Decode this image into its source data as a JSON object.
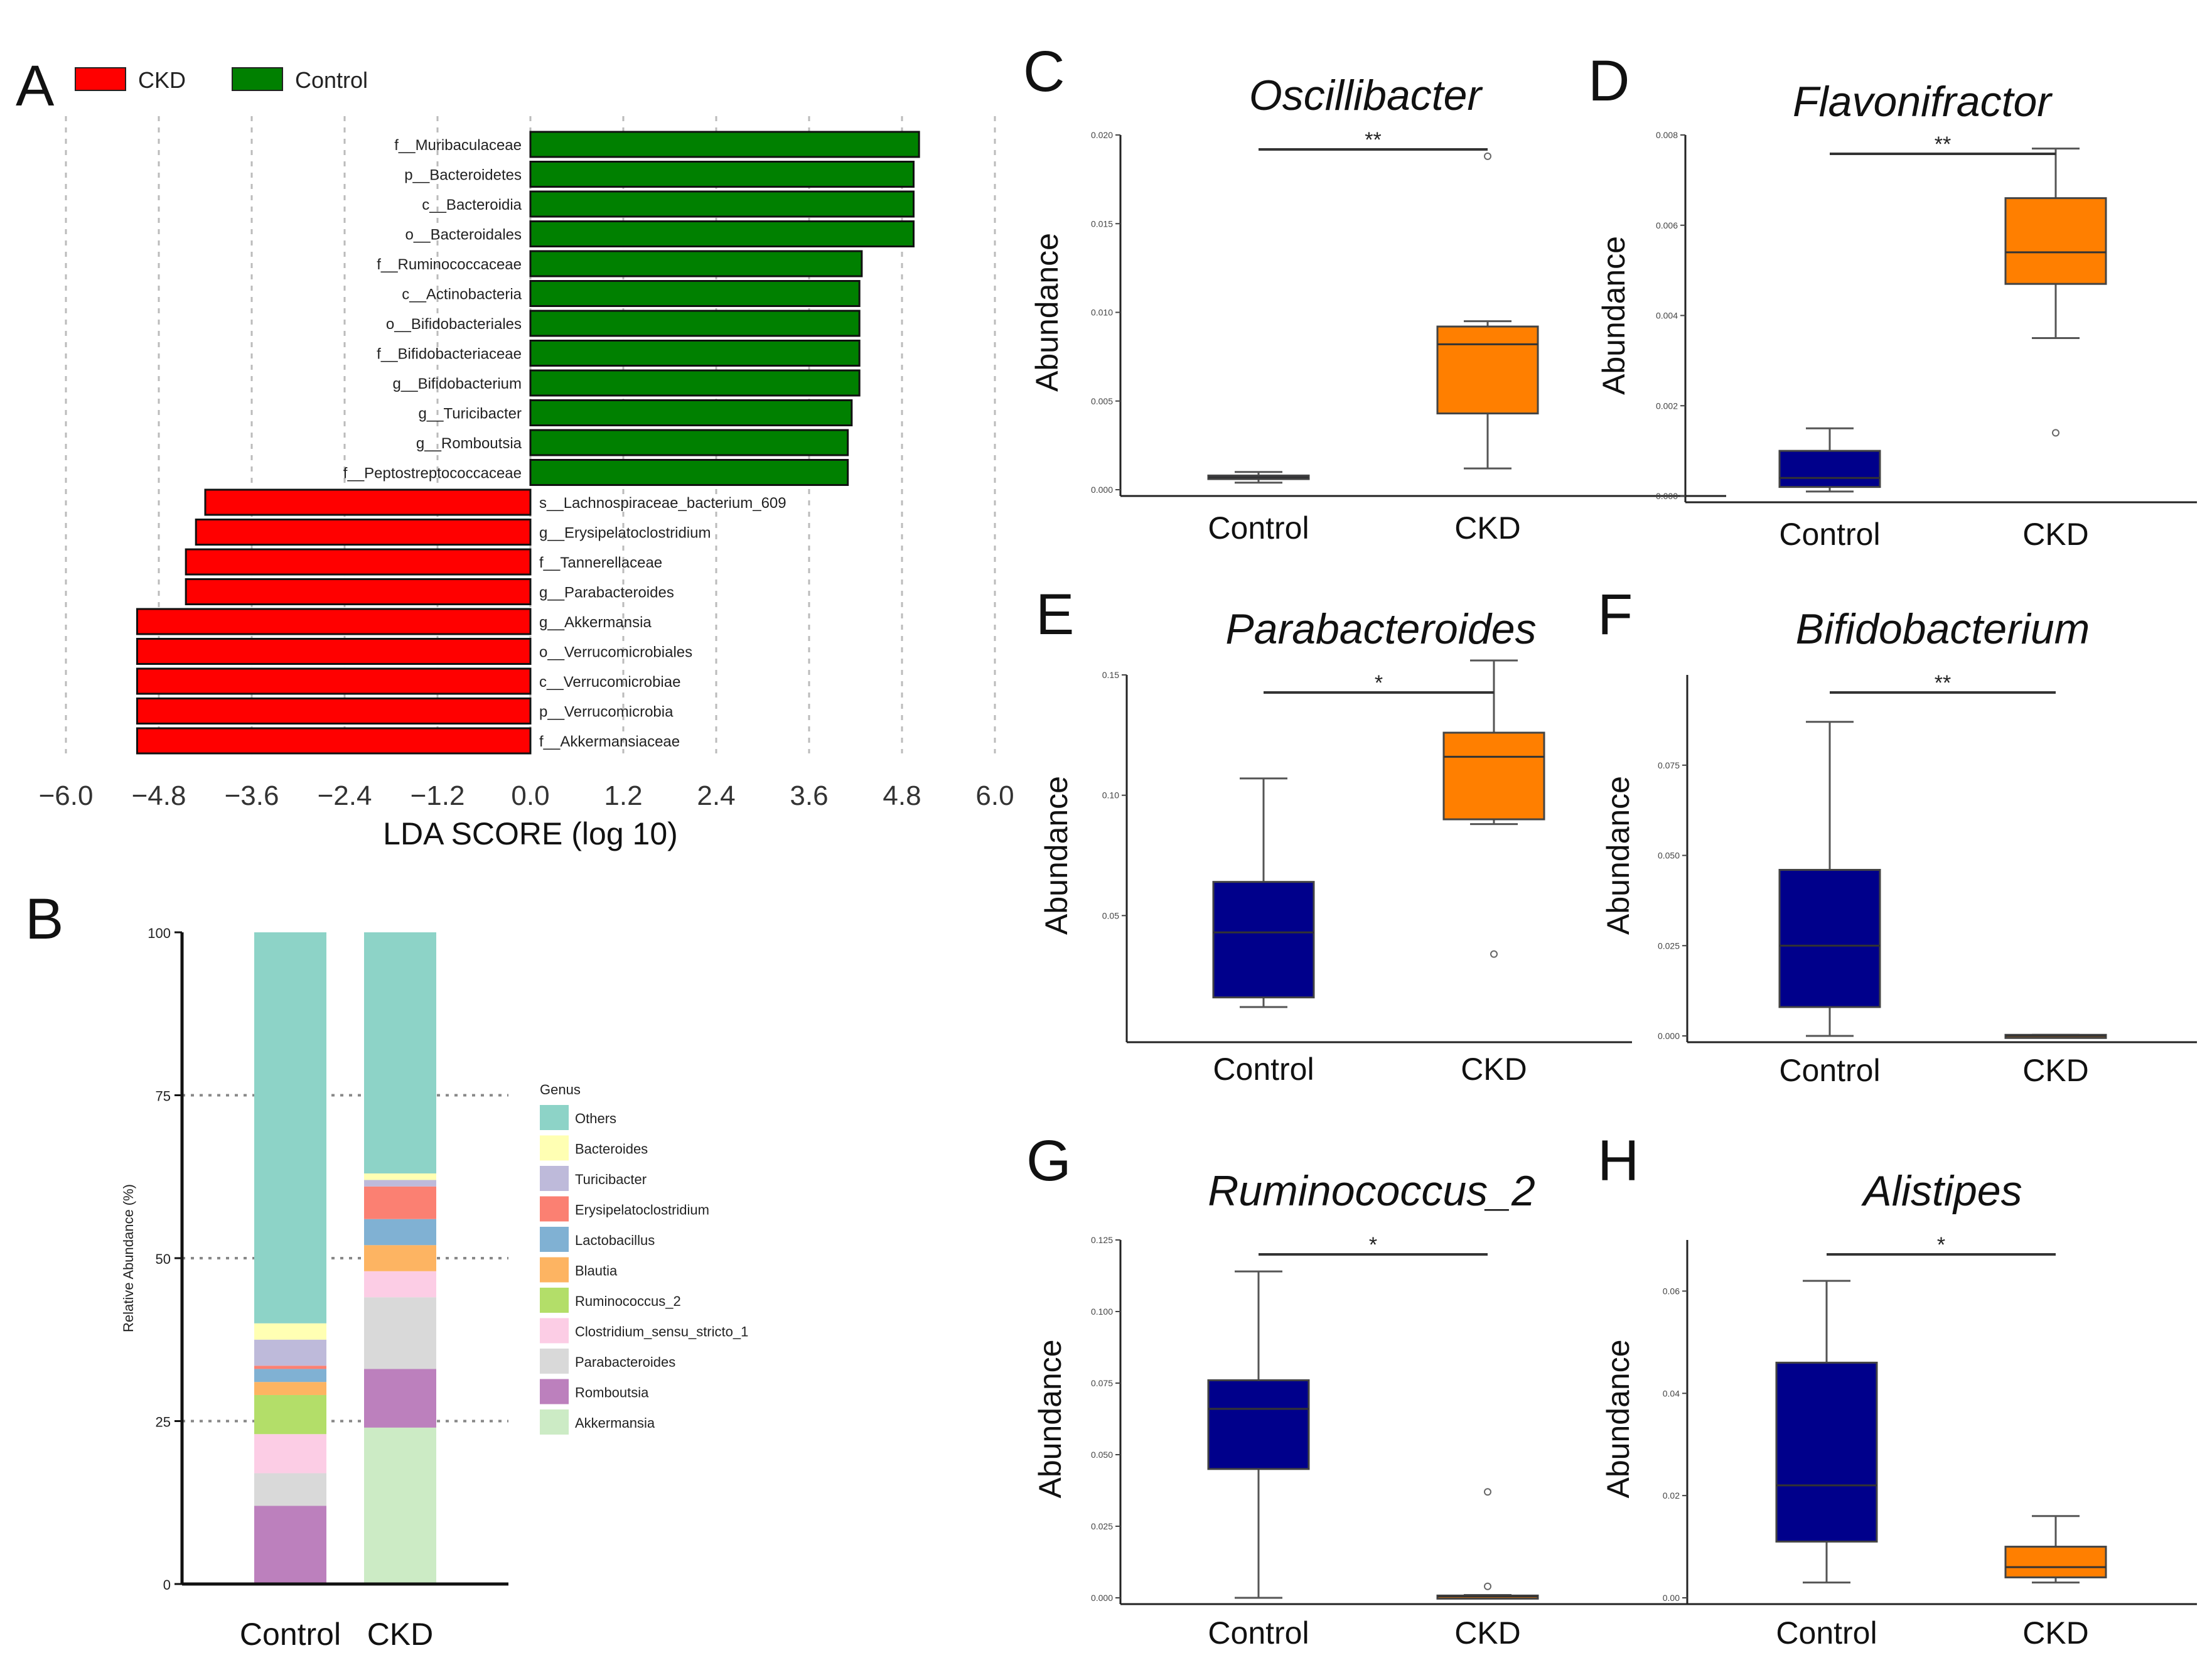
{
  "panel_letters": {
    "A": "A",
    "B": "B",
    "C": "C",
    "D": "D",
    "E": "E",
    "F": "F",
    "G": "G",
    "H": "H"
  },
  "colors": {
    "ckd": "#ff0000",
    "control": "#008000",
    "box_control": "#00008b",
    "box_ckd": "#ff7f00"
  },
  "chart_data": [
    {
      "id": "A",
      "type": "bar",
      "orientation": "horizontal",
      "legend": [
        {
          "name": "CKD",
          "color": "#ff0000"
        },
        {
          "name": "Control",
          "color": "#008000"
        }
      ],
      "xlabel": "LDA SCORE (log 10)",
      "xlim": [
        -6.0,
        6.0
      ],
      "xticks": [
        "−6.0",
        "−4.8",
        "−3.6",
        "−2.4",
        "−1.2",
        "0.0",
        "1.2",
        "2.4",
        "3.6",
        "4.8",
        "6.0"
      ],
      "categories": [
        "f__Muribaculaceae",
        "p__Bacteroidetes",
        "c__Bacteroidia",
        "o__Bacteroidales",
        "f__Ruminococcaceae",
        "c__Actinobacteria",
        "o__Bifidobacteriales",
        "f__Bifidobacteriaceae",
        "g__Bifidobacterium",
        "g__Turicibacter",
        "g__Romboutsia",
        "f__Peptostreptococcaceae",
        "s__Lachnospiraceae_bacterium_609",
        "g__Erysipelatoclostridium",
        "f__Tannerellaceae",
        "g__Parabacteroides",
        "g__Akkermansia",
        "o__Verrucomicrobiales",
        "c__Verrucomicrobiae",
        "p__Verrucomicrobia",
        "f__Akkermansiaceae"
      ],
      "values": [
        5.02,
        4.95,
        4.95,
        4.95,
        4.28,
        4.25,
        4.25,
        4.25,
        4.25,
        4.15,
        4.1,
        4.1,
        -4.2,
        -4.32,
        -4.45,
        -4.45,
        -5.08,
        -5.08,
        -5.08,
        -5.08,
        -5.08
      ],
      "groups": [
        "Control",
        "Control",
        "Control",
        "Control",
        "Control",
        "Control",
        "Control",
        "Control",
        "Control",
        "Control",
        "Control",
        "Control",
        "CKD",
        "CKD",
        "CKD",
        "CKD",
        "CKD",
        "CKD",
        "CKD",
        "CKD",
        "CKD"
      ]
    },
    {
      "id": "B",
      "type": "bar",
      "stacked": true,
      "categories": [
        "Control",
        "CKD"
      ],
      "ylabel": "Relative Abundance (%)",
      "ylim": [
        0,
        100
      ],
      "yticks": [
        "0",
        "25",
        "50",
        "75",
        "100"
      ],
      "legend_title": "Genus",
      "series": [
        {
          "name": "Akkermansia",
          "color": "#ccebc5",
          "values": [
            0,
            24
          ]
        },
        {
          "name": "Romboutsia",
          "color": "#bc80bd",
          "values": [
            12,
            9
          ]
        },
        {
          "name": "Parabacteroides",
          "color": "#d9d9d9",
          "values": [
            5,
            11
          ]
        },
        {
          "name": "Clostridium_sensu_stricto_1",
          "color": "#fccde5",
          "values": [
            6,
            4
          ]
        },
        {
          "name": "Ruminococcus_2",
          "color": "#b3de69",
          "values": [
            6,
            0
          ]
        },
        {
          "name": "Blautia",
          "color": "#fdb462",
          "values": [
            2,
            4
          ]
        },
        {
          "name": "Lactobacillus",
          "color": "#80b1d3",
          "values": [
            2,
            4
          ]
        },
        {
          "name": "Erysipelatoclostridium",
          "color": "#fb8072",
          "values": [
            0.5,
            5
          ]
        },
        {
          "name": "Turicibacter",
          "color": "#bebada",
          "values": [
            4,
            1
          ]
        },
        {
          "name": "Bacteroides",
          "color": "#ffffb3",
          "values": [
            2.5,
            1
          ]
        },
        {
          "name": "Others",
          "color": "#8dd3c7",
          "values": [
            60,
            37
          ]
        }
      ],
      "legend_order": [
        "Others",
        "Bacteroides",
        "Turicibacter",
        "Erysipelatoclostridium",
        "Lactobacillus",
        "Blautia",
        "Ruminococcus_2",
        "Clostridium_sensu_stricto_1",
        "Parabacteroides",
        "Romboutsia",
        "Akkermansia"
      ]
    },
    {
      "id": "C",
      "type": "box",
      "title": "Oscillibacter",
      "ylabel": "Abundance",
      "categories": [
        "Control",
        "CKD"
      ],
      "ylim": [
        0,
        0.02
      ],
      "yticks": [
        0,
        0.005,
        0.01,
        0.015,
        0.02
      ],
      "tick_labels": [
        "0.000",
        "0.005",
        "0.010",
        "0.015",
        "0.020"
      ],
      "significance": "**",
      "boxes": [
        {
          "min": 0.0004,
          "q1": 0.0006,
          "median": 0.0007,
          "q3": 0.0008,
          "max": 0.001,
          "outliers": []
        },
        {
          "min": 0.0012,
          "q1": 0.0043,
          "median": 0.0082,
          "q3": 0.0092,
          "max": 0.0095,
          "outliers": [
            0.0188
          ]
        }
      ]
    },
    {
      "id": "D",
      "type": "box",
      "title": "Flavonifractor",
      "ylabel": "Abundance",
      "categories": [
        "Control",
        "CKD"
      ],
      "ylim": [
        0,
        0.008
      ],
      "yticks": [
        0,
        0.002,
        0.004,
        0.006,
        0.008
      ],
      "tick_labels": [
        "0.000",
        "0.002",
        "0.004",
        "0.006",
        "0.008"
      ],
      "significance": "**",
      "boxes": [
        {
          "min": 0.0001,
          "q1": 0.0002,
          "median": 0.0004,
          "q3": 0.001,
          "max": 0.0015,
          "outliers": []
        },
        {
          "min": 0.0035,
          "q1": 0.0047,
          "median": 0.0054,
          "q3": 0.0066,
          "max": 0.0077,
          "outliers": [
            0.0014
          ]
        }
      ]
    },
    {
      "id": "E",
      "type": "box",
      "title": "Parabacteroides",
      "ylabel": "Abundance",
      "categories": [
        "Control",
        "CKD"
      ],
      "ylim": [
        0,
        0.15
      ],
      "yticks": [
        0.05,
        0.1,
        0.15
      ],
      "tick_labels": [
        "0.05",
        "0.10",
        "0.15"
      ],
      "significance": "*",
      "boxes": [
        {
          "min": 0.012,
          "q1": 0.016,
          "median": 0.043,
          "q3": 0.064,
          "max": 0.107,
          "outliers": []
        },
        {
          "min": 0.088,
          "q1": 0.09,
          "median": 0.116,
          "q3": 0.126,
          "max": 0.156,
          "outliers": [
            0.034
          ]
        }
      ]
    },
    {
      "id": "F",
      "type": "box",
      "title": "Bifidobacterium",
      "ylabel": "Abundance",
      "categories": [
        "Control",
        "CKD"
      ],
      "ylim": [
        0,
        0.1
      ],
      "yticks": [
        0,
        0.025,
        0.05,
        0.075
      ],
      "tick_labels": [
        "0.000",
        "0.025",
        "0.050",
        "0.075"
      ],
      "significance": "**",
      "boxes": [
        {
          "min": 0.0,
          "q1": 0.008,
          "median": 0.025,
          "q3": 0.046,
          "max": 0.087,
          "outliers": []
        },
        {
          "min": 0.0,
          "q1": 0.0,
          "median": 0.0,
          "q3": 0.0003,
          "max": 0.0003,
          "outliers": []
        }
      ]
    },
    {
      "id": "G",
      "type": "box",
      "title": "Ruminococcus_2",
      "ylabel": "Abundance",
      "categories": [
        "Control",
        "CKD"
      ],
      "ylim": [
        0,
        0.125
      ],
      "yticks": [
        0,
        0.025,
        0.05,
        0.075,
        0.1,
        0.125
      ],
      "tick_labels": [
        "0.000",
        "0.025",
        "0.050",
        "0.075",
        "0.100",
        "0.125"
      ],
      "significance": "*",
      "boxes": [
        {
          "min": 0.0,
          "q1": 0.045,
          "median": 0.066,
          "q3": 0.076,
          "max": 0.114,
          "outliers": []
        },
        {
          "min": 0.0,
          "q1": 0.0002,
          "median": 0.0005,
          "q3": 0.0008,
          "max": 0.001,
          "outliers": [
            0.037,
            0.004
          ]
        }
      ]
    },
    {
      "id": "H",
      "type": "box",
      "title": "Alistipes",
      "ylabel": "Abundance",
      "categories": [
        "Control",
        "CKD"
      ],
      "ylim": [
        0,
        0.07
      ],
      "yticks": [
        0,
        0.02,
        0.04,
        0.06
      ],
      "tick_labels": [
        "0.00",
        "0.02",
        "0.04",
        "0.06"
      ],
      "significance": "*",
      "boxes": [
        {
          "min": 0.003,
          "q1": 0.011,
          "median": 0.022,
          "q3": 0.046,
          "max": 0.062,
          "outliers": []
        },
        {
          "min": 0.003,
          "q1": 0.004,
          "median": 0.006,
          "q3": 0.01,
          "max": 0.016,
          "outliers": []
        }
      ]
    }
  ]
}
